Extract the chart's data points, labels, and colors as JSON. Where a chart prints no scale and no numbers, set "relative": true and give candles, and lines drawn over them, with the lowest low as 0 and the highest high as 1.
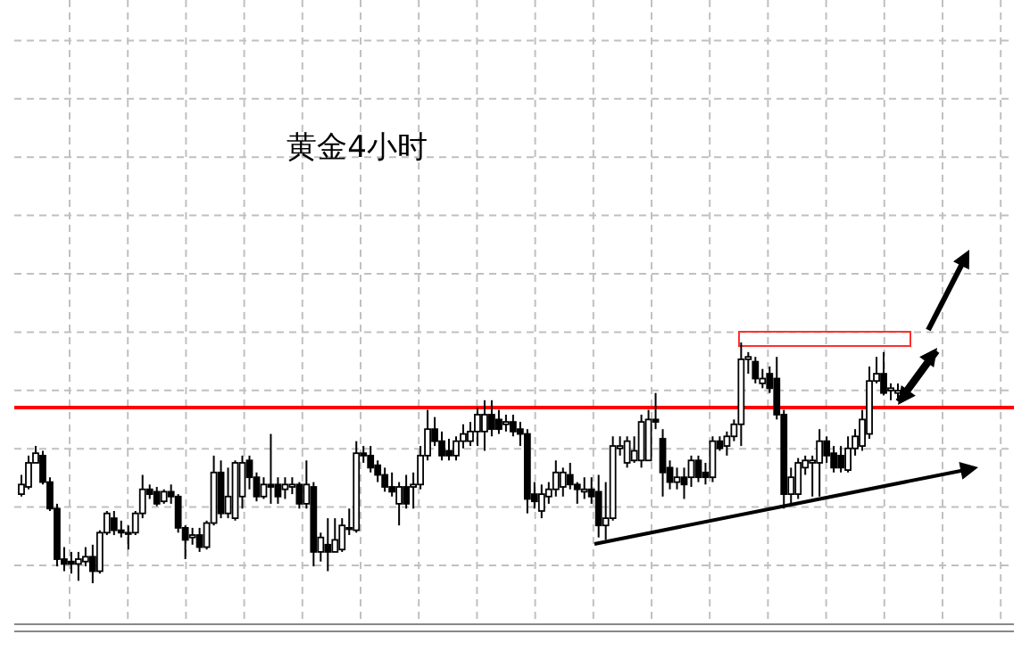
{
  "chart_data": {
    "type": "candlestick",
    "title": "黄金4小时",
    "relative": true,
    "grid": true,
    "categories": [
      null,
      null,
      null,
      null,
      null,
      null,
      null,
      null,
      null,
      null,
      null,
      null,
      null,
      null,
      null,
      null,
      null,
      null,
      null,
      null,
      null,
      null,
      null,
      null,
      null,
      null,
      null,
      null,
      null,
      null,
      null,
      null,
      null,
      null,
      null,
      null,
      null,
      null,
      null,
      null,
      null,
      null,
      null,
      null,
      null,
      null,
      null,
      null,
      null,
      null,
      null,
      null,
      null,
      null,
      null,
      null,
      null,
      null,
      null,
      null,
      null,
      null,
      null,
      null,
      null,
      null,
      null,
      null,
      null,
      null,
      null,
      null,
      null,
      null,
      null,
      null,
      null,
      null,
      null,
      null,
      null,
      null,
      null,
      null,
      null,
      null,
      null,
      null,
      null,
      null,
      null,
      null,
      null,
      null,
      null,
      null,
      null,
      null,
      null,
      null,
      null,
      null,
      null,
      null,
      null,
      null,
      null,
      null,
      null,
      null,
      null,
      null,
      null,
      null,
      null,
      null,
      null,
      null,
      null,
      null,
      null,
      null,
      null,
      null
    ],
    "ohlc": [
      [
        0.37,
        0.45,
        0.36,
        0.41
      ],
      [
        0.4,
        0.53,
        0.39,
        0.5
      ],
      [
        0.5,
        0.57,
        0.5,
        0.54
      ],
      [
        0.53,
        0.55,
        0.41,
        0.42
      ],
      [
        0.42,
        0.44,
        0.3,
        0.31
      ],
      [
        0.31,
        0.33,
        0.07,
        0.1
      ],
      [
        0.1,
        0.15,
        0.05,
        0.08
      ],
      [
        0.09,
        0.13,
        0.04,
        0.08
      ],
      [
        0.08,
        0.13,
        0.01,
        0.1
      ],
      [
        0.09,
        0.15,
        0.07,
        0.11
      ],
      [
        0.11,
        0.16,
        0,
        0.05
      ],
      [
        0.05,
        0.22,
        0.04,
        0.21
      ],
      [
        0.21,
        0.3,
        0.2,
        0.29
      ],
      [
        0.27,
        0.3,
        0.2,
        0.22
      ],
      [
        0.22,
        0.26,
        0.19,
        0.21
      ],
      [
        0.21,
        0.24,
        0.14,
        0.21
      ],
      [
        0.21,
        0.3,
        0.2,
        0.29
      ],
      [
        0.29,
        0.45,
        0.27,
        0.39
      ],
      [
        0.39,
        0.41,
        0.35,
        0.37
      ],
      [
        0.38,
        0.4,
        0.32,
        0.33
      ],
      [
        0.34,
        0.39,
        0.33,
        0.38
      ],
      [
        0.38,
        0.41,
        0.33,
        0.36
      ],
      [
        0.36,
        0.37,
        0.21,
        0.23
      ],
      [
        0.23,
        0.24,
        0.1,
        0.18
      ],
      [
        0.19,
        0.23,
        0.16,
        0.2
      ],
      [
        0.2,
        0.23,
        0.13,
        0.15
      ],
      [
        0.15,
        0.26,
        0.14,
        0.25
      ],
      [
        0.25,
        0.53,
        0.24,
        0.46
      ],
      [
        0.46,
        0.51,
        0.27,
        0.29
      ],
      [
        0.29,
        0.48,
        0.27,
        0.36
      ],
      [
        0.27,
        0.51,
        0.26,
        0.5
      ],
      [
        0.36,
        0.53,
        0.31,
        0.5
      ],
      [
        0.51,
        0.53,
        0.39,
        0.44
      ],
      [
        0.44,
        0.46,
        0.34,
        0.36
      ],
      [
        0.36,
        0.44,
        0.35,
        0.41
      ],
      [
        0.41,
        0.62,
        0.33,
        0.4
      ],
      [
        0.41,
        0.44,
        0.33,
        0.36
      ],
      [
        0.39,
        0.44,
        0.35,
        0.41
      ],
      [
        0.4,
        0.44,
        0.37,
        0.41
      ],
      [
        0.41,
        0.42,
        0.31,
        0.33
      ],
      [
        0.33,
        0.51,
        0.31,
        0.41
      ],
      [
        0.4,
        0.42,
        0.07,
        0.13
      ],
      [
        0.13,
        0.21,
        0.09,
        0.19
      ],
      [
        0.16,
        0.27,
        0.05,
        0.13
      ],
      [
        0.13,
        0.27,
        0.13,
        0.18
      ],
      [
        0.14,
        0.27,
        0.13,
        0.24
      ],
      [
        0.23,
        0.31,
        0.2,
        0.23
      ],
      [
        0.22,
        0.59,
        0.21,
        0.54
      ],
      [
        0.54,
        0.57,
        0.5,
        0.53
      ],
      [
        0.53,
        0.57,
        0.46,
        0.48
      ],
      [
        0.49,
        0.51,
        0.42,
        0.45
      ],
      [
        0.45,
        0.48,
        0.38,
        0.4
      ],
      [
        0.4,
        0.46,
        0.36,
        0.38
      ],
      [
        0.33,
        0.42,
        0.24,
        0.4
      ],
      [
        0.4,
        0.45,
        0.31,
        0.33
      ],
      [
        0.4,
        0.46,
        0.31,
        0.41
      ],
      [
        0.41,
        0.57,
        0.39,
        0.53
      ],
      [
        0.53,
        0.72,
        0.51,
        0.64
      ],
      [
        0.64,
        0.69,
        0.57,
        0.59
      ],
      [
        0.59,
        0.63,
        0.51,
        0.53
      ],
      [
        0.55,
        0.6,
        0.51,
        0.53
      ],
      [
        0.53,
        0.61,
        0.51,
        0.59
      ],
      [
        0.59,
        0.66,
        0.56,
        0.62
      ],
      [
        0.59,
        0.67,
        0.57,
        0.63
      ],
      [
        0.63,
        0.73,
        0.57,
        0.7
      ],
      [
        0.63,
        0.76,
        0.55,
        0.7
      ],
      [
        0.7,
        0.76,
        0.61,
        0.64
      ],
      [
        0.68,
        0.72,
        0.62,
        0.64
      ],
      [
        0.66,
        0.7,
        0.63,
        0.67
      ],
      [
        0.67,
        0.7,
        0.61,
        0.63
      ],
      [
        0.64,
        0.67,
        0.57,
        0.62
      ],
      [
        0.62,
        0.64,
        0.29,
        0.35
      ],
      [
        0.37,
        0.42,
        0.31,
        0.34
      ],
      [
        0.3,
        0.41,
        0.27,
        0.37
      ],
      [
        0.36,
        0.42,
        0.33,
        0.39
      ],
      [
        0.39,
        0.51,
        0.36,
        0.46
      ],
      [
        0.4,
        0.48,
        0.36,
        0.46
      ],
      [
        0.45,
        0.5,
        0.39,
        0.41
      ],
      [
        0.41,
        0.42,
        0.33,
        0.39
      ],
      [
        0.38,
        0.44,
        0.35,
        0.39
      ],
      [
        0.39,
        0.44,
        0.33,
        0.36
      ],
      [
        0.38,
        0.45,
        0.19,
        0.24
      ],
      [
        0.24,
        0.42,
        0.18,
        0.27
      ],
      [
        0.27,
        0.61,
        0.26,
        0.57
      ],
      [
        0.56,
        0.61,
        0.53,
        0.57
      ],
      [
        0.5,
        0.61,
        0.48,
        0.59
      ],
      [
        0.51,
        0.61,
        0.5,
        0.55
      ],
      [
        0.51,
        0.7,
        0.48,
        0.67
      ],
      [
        0.51,
        0.72,
        0.51,
        0.68
      ],
      [
        0.68,
        0.79,
        0.64,
        0.67
      ],
      [
        0.6,
        0.64,
        0.36,
        0.46
      ],
      [
        0.48,
        0.51,
        0.39,
        0.42
      ],
      [
        0.42,
        0.48,
        0.39,
        0.44
      ],
      [
        0.44,
        0.48,
        0.35,
        0.41
      ],
      [
        0.44,
        0.53,
        0.4,
        0.51
      ],
      [
        0.51,
        0.53,
        0.42,
        0.44
      ],
      [
        0.46,
        0.5,
        0.41,
        0.44
      ],
      [
        0.44,
        0.61,
        0.42,
        0.59
      ],
      [
        0.59,
        0.61,
        0.55,
        0.56
      ],
      [
        0.57,
        0.63,
        0.53,
        0.61
      ],
      [
        0.61,
        0.68,
        0.59,
        0.66
      ],
      [
        0.66,
        1,
        0.57,
        0.93
      ],
      [
        0.93,
        0.96,
        0.87,
        0.94
      ],
      [
        0.92,
        0.94,
        0.83,
        0.85
      ],
      [
        0.83,
        0.89,
        0.81,
        0.85
      ],
      [
        0.87,
        0.9,
        0.79,
        0.81
      ],
      [
        0.85,
        0.94,
        0.68,
        0.7
      ],
      [
        0.7,
        0.72,
        0.31,
        0.37
      ],
      [
        0.37,
        0.48,
        0.33,
        0.44
      ],
      [
        0.37,
        0.52,
        0.35,
        0.5
      ],
      [
        0.48,
        0.53,
        0.45,
        0.51
      ],
      [
        0.5,
        0.53,
        0.36,
        0.51
      ],
      [
        0.5,
        0.64,
        0.36,
        0.59
      ],
      [
        0.59,
        0.61,
        0.5,
        0.53
      ],
      [
        0.54,
        0.57,
        0.46,
        0.48
      ],
      [
        0.53,
        0.57,
        0.46,
        0.48
      ],
      [
        0.47,
        0.61,
        0.46,
        0.56
      ],
      [
        0.56,
        0.64,
        0.53,
        0.61
      ],
      [
        0.57,
        0.72,
        0.55,
        0.68
      ],
      [
        0.62,
        0.9,
        0.6,
        0.84
      ],
      [
        0.84,
        0.94,
        0.83,
        0.87
      ],
      [
        0.87,
        0.96,
        0.78,
        0.79
      ],
      [
        0.8,
        0.83,
        0.76,
        0.81
      ],
      [
        0.79,
        0.83,
        0.77,
        0.8
      ]
    ],
    "ref_lines": [
      {
        "axis": "y",
        "value": 0.73,
        "color": "#ff0000"
      }
    ]
  }
}
